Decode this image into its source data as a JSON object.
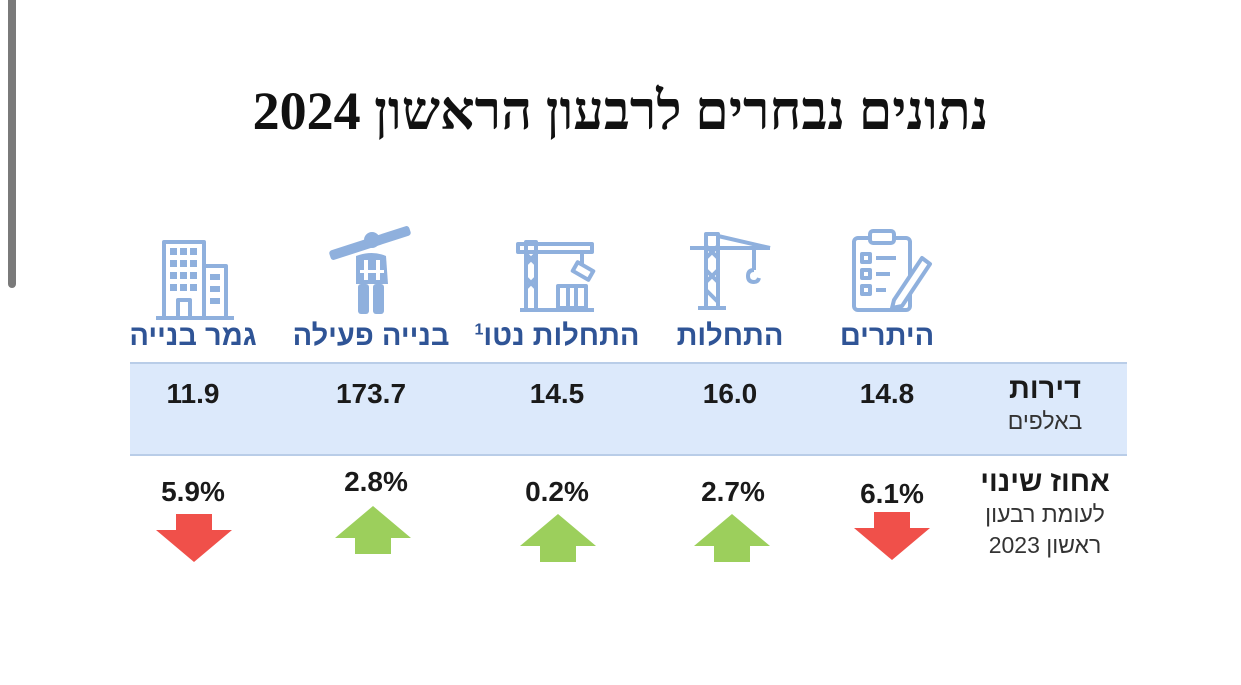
{
  "title": "נתונים נבחרים לרבעון הראשון 2024",
  "colors": {
    "label_blue": "#2f5496",
    "icon_blue": "#8fb0dd",
    "band_fill": "#dce9fb",
    "up_green": "#9ccf5c",
    "down_red": "#f0504a"
  },
  "rows": {
    "apartments": {
      "label": "דירות",
      "unit": "באלפים"
    },
    "change": {
      "label": "אחוז שינוי",
      "sub_line1": "לעומת רבעון",
      "sub_line2": "ראשון 2023"
    }
  },
  "columns": [
    {
      "label": "היתרים",
      "icon": "permit-clipboard-icon",
      "value": "14.8",
      "change": "6.1%",
      "direction": "down"
    },
    {
      "label": "התחלות",
      "icon": "tower-crane-icon",
      "value": "16.0",
      "change": "2.7%",
      "direction": "up"
    },
    {
      "label": "התחלות נטו",
      "footnote": "1",
      "icon": "crane-building-icon",
      "value": "14.5",
      "change": "0.2%",
      "direction": "up"
    },
    {
      "label": "בנייה פעילה",
      "icon": "construction-worker-icon",
      "value": "173.7",
      "change": "2.8%",
      "direction": "up"
    },
    {
      "label": "גמר בנייה",
      "icon": "completed-building-icon",
      "value": "11.9",
      "change": "5.9%",
      "direction": "down"
    }
  ]
}
